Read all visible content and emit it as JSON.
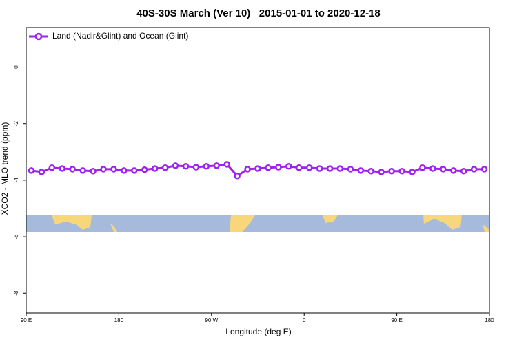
{
  "chart_data": {
    "type": "line",
    "title": "40S-30S March (Ver 10)   2015-01-01 to 2020-12-18",
    "xlabel": "Longitude (deg E)",
    "ylabel": "XCO2 - MLO trend (ppm)",
    "xlim": [
      90,
      540
    ],
    "ylim": [
      -8.7,
      1.4
    ],
    "xticks": [
      {
        "value": 90,
        "label": "90 E"
      },
      180,
      {
        "value": 270,
        "label": "90 W"
      },
      {
        "value": 360,
        "label": "0"
      },
      {
        "value": 450,
        "label": "90 E"
      },
      {
        "value": 540,
        "label": "180"
      }
    ],
    "yticks": [
      0,
      -2,
      -4,
      -6,
      -8
    ],
    "legend": "upper left",
    "series": [
      {
        "name": "Land (Nadir&Glint) and Ocean (Glint)",
        "color": "#a020f0",
        "x": [
          95,
          105,
          115,
          125,
          135,
          145,
          155,
          165,
          175,
          185,
          195,
          205,
          215,
          225,
          235,
          245,
          255,
          265,
          275,
          285,
          295,
          305,
          315,
          325,
          335,
          345,
          355,
          365,
          375,
          385,
          395,
          405,
          415,
          425,
          435,
          445,
          455,
          465,
          475,
          485,
          495,
          505,
          515,
          525,
          535
        ],
        "values": [
          -3.66,
          -3.71,
          -3.56,
          -3.59,
          -3.61,
          -3.66,
          -3.68,
          -3.61,
          -3.61,
          -3.66,
          -3.66,
          -3.63,
          -3.59,
          -3.56,
          -3.49,
          -3.51,
          -3.54,
          -3.51,
          -3.49,
          -3.44,
          -3.85,
          -3.61,
          -3.59,
          -3.56,
          -3.54,
          -3.51,
          -3.56,
          -3.56,
          -3.59,
          -3.59,
          -3.59,
          -3.61,
          -3.66,
          -3.68,
          -3.71,
          -3.68,
          -3.68,
          -3.71,
          -3.56,
          -3.59,
          -3.61,
          -3.66,
          -3.68,
          -3.61,
          -3.61
        ]
      }
    ]
  }
}
